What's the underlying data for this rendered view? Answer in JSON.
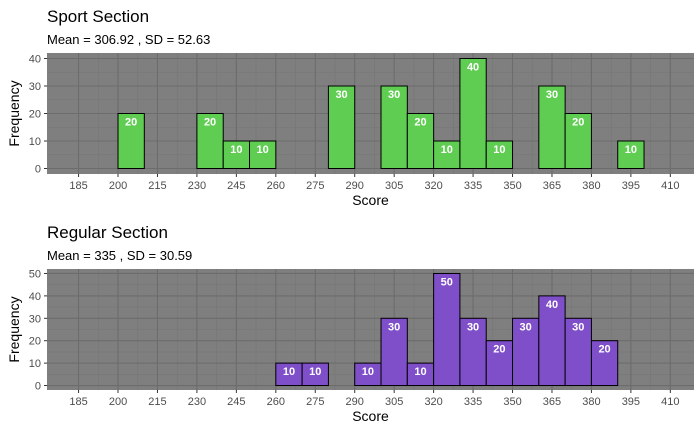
{
  "chart_data": [
    {
      "type": "bar",
      "title": "Sport Section",
      "subtitle": "Mean = 306.92 , SD = 52.63",
      "xlabel": "Score",
      "ylabel": "Frequency",
      "x_ticks": [
        185,
        200,
        215,
        230,
        245,
        260,
        275,
        290,
        305,
        320,
        335,
        350,
        365,
        380,
        395,
        410
      ],
      "y_ticks": [
        0,
        10,
        20,
        30,
        40
      ],
      "xlim": [
        173,
        419
      ],
      "ylim": [
        -2,
        42
      ],
      "bin_width": 10,
      "bar_color": "#5fcd52",
      "panel_color": "#7f7f7f",
      "bins": [
        {
          "start": 200,
          "value": 20
        },
        {
          "start": 230,
          "value": 20
        },
        {
          "start": 240,
          "value": 10
        },
        {
          "start": 250,
          "value": 10
        },
        {
          "start": 280,
          "value": 30
        },
        {
          "start": 300,
          "value": 30
        },
        {
          "start": 310,
          "value": 20
        },
        {
          "start": 320,
          "value": 10
        },
        {
          "start": 330,
          "value": 40
        },
        {
          "start": 340,
          "value": 10
        },
        {
          "start": 360,
          "value": 30
        },
        {
          "start": 370,
          "value": 20
        },
        {
          "start": 390,
          "value": 10
        }
      ]
    },
    {
      "type": "bar",
      "title": "Regular Section",
      "subtitle": "Mean = 335 , SD = 30.59",
      "xlabel": "Score",
      "ylabel": "Frequency",
      "x_ticks": [
        185,
        200,
        215,
        230,
        245,
        260,
        275,
        290,
        305,
        320,
        335,
        350,
        365,
        380,
        395,
        410
      ],
      "y_ticks": [
        0,
        10,
        20,
        30,
        40,
        50
      ],
      "xlim": [
        173,
        419
      ],
      "ylim": [
        -2,
        52
      ],
      "bin_width": 10,
      "bar_color": "#7e4fc8",
      "panel_color": "#7f7f7f",
      "bins": [
        {
          "start": 260,
          "value": 10
        },
        {
          "start": 270,
          "value": 10
        },
        {
          "start": 290,
          "value": 10
        },
        {
          "start": 300,
          "value": 30
        },
        {
          "start": 310,
          "value": 10
        },
        {
          "start": 320,
          "value": 50
        },
        {
          "start": 330,
          "value": 30
        },
        {
          "start": 340,
          "value": 20
        },
        {
          "start": 350,
          "value": 30
        },
        {
          "start": 360,
          "value": 40
        },
        {
          "start": 370,
          "value": 30
        },
        {
          "start": 380,
          "value": 20
        }
      ]
    }
  ]
}
